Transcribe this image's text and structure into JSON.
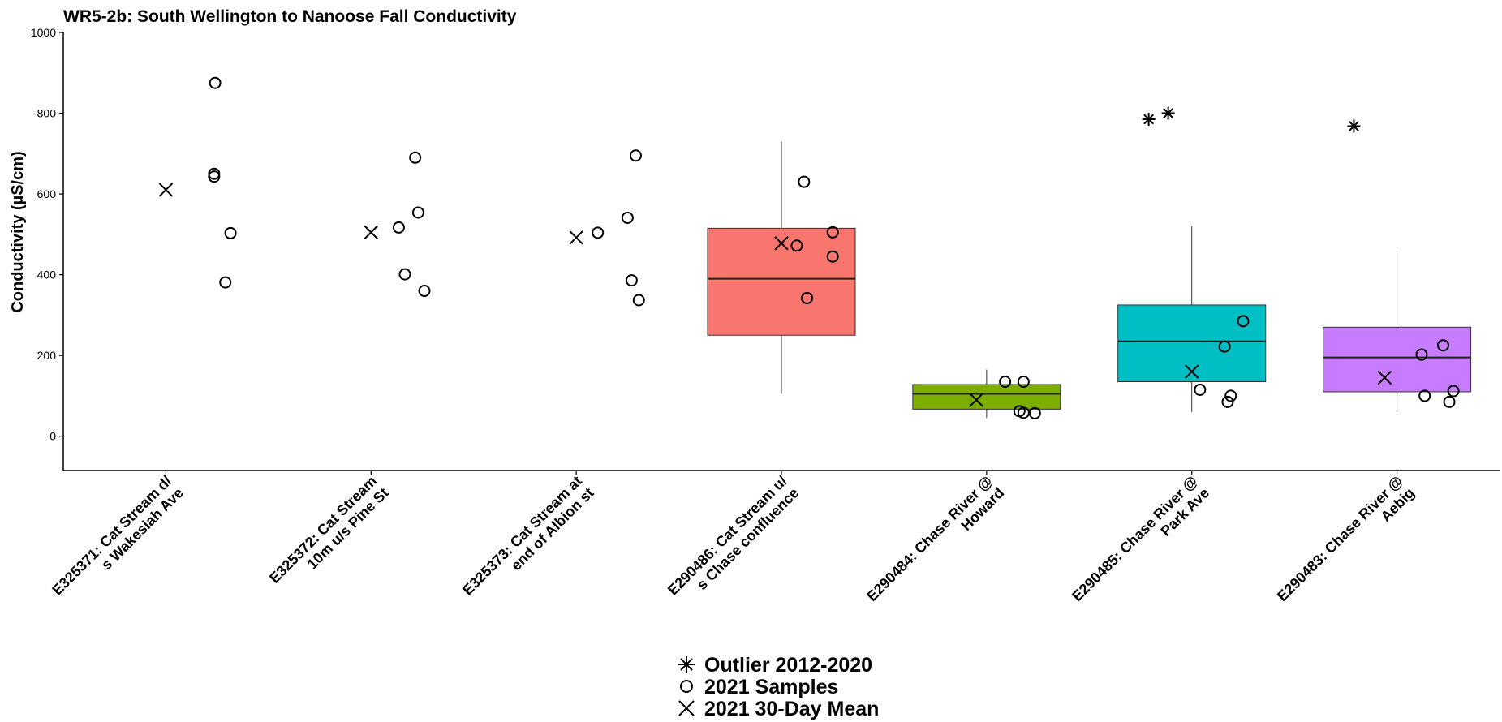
{
  "chart_data": {
    "type": "box",
    "title": "WR5-2b: South Wellington to Nanoose Fall Conductivity",
    "ylabel": "Conductivity (µS/cm)",
    "xlabel": "",
    "ylim": [
      -85,
      1000
    ],
    "yticks": [
      0,
      200,
      400,
      600,
      800,
      1000
    ],
    "grid": false,
    "legend_position": "bottom",
    "legend": [
      {
        "key": "outlier",
        "symbol": "asterisk",
        "label": "Outlier 2012-2020"
      },
      {
        "key": "samples",
        "symbol": "circle",
        "label": "2021 Samples"
      },
      {
        "key": "mean",
        "symbol": "cross",
        "label": "2021 30-Day Mean"
      }
    ],
    "categories": [
      {
        "label_lines": [
          "E325371: Cat Stream d/",
          "s Wakesiah Ave"
        ],
        "box": null,
        "outliers": [],
        "samples": [
          {
            "o": 0.48,
            "y": 875
          },
          {
            "o": 0.47,
            "y": 650
          },
          {
            "o": 0.47,
            "y": 643
          },
          {
            "o": 0.63,
            "y": 503
          },
          {
            "o": 0.58,
            "y": 381
          }
        ],
        "mean": {
          "o": 0.0,
          "y": 610
        }
      },
      {
        "label_lines": [
          "E325372: Cat Stream",
          "10m u/s Pine St"
        ],
        "box": null,
        "outliers": [],
        "samples": [
          {
            "o": 0.43,
            "y": 690
          },
          {
            "o": 0.46,
            "y": 554
          },
          {
            "o": 0.27,
            "y": 517
          },
          {
            "o": 0.33,
            "y": 401
          },
          {
            "o": 0.52,
            "y": 360
          }
        ],
        "mean": {
          "o": 0.0,
          "y": 505
        }
      },
      {
        "label_lines": [
          "E325373: Cat Stream at",
          "end of Albion st"
        ],
        "box": null,
        "outliers": [],
        "samples": [
          {
            "o": 0.58,
            "y": 695
          },
          {
            "o": 0.5,
            "y": 541
          },
          {
            "o": 0.21,
            "y": 504
          },
          {
            "o": 0.54,
            "y": 386
          },
          {
            "o": 0.61,
            "y": 337
          }
        ],
        "mean": {
          "o": 0.0,
          "y": 492
        }
      },
      {
        "label_lines": [
          "E290486: Cat Stream u/",
          "s Chase confluence"
        ],
        "box": {
          "whisker_low": 105,
          "q1": 250,
          "median": 390,
          "q3": 515,
          "whisker_high": 730
        },
        "color": "#F8766D",
        "outliers": [],
        "samples": [
          {
            "o": 0.22,
            "y": 630
          },
          {
            "o": 0.5,
            "y": 505
          },
          {
            "o": 0.15,
            "y": 472
          },
          {
            "o": 0.5,
            "y": 445
          },
          {
            "o": 0.25,
            "y": 342
          }
        ],
        "mean": {
          "o": 0.0,
          "y": 478
        }
      },
      {
        "label_lines": [
          "E290484: Chase River @",
          "Howard"
        ],
        "box": {
          "whisker_low": 45,
          "q1": 67,
          "median": 105,
          "q3": 128,
          "whisker_high": 165
        },
        "color": "#7CAE00",
        "outliers": [],
        "samples": [
          {
            "o": 0.18,
            "y": 135
          },
          {
            "o": 0.36,
            "y": 135
          },
          {
            "o": 0.32,
            "y": 62
          },
          {
            "o": 0.36,
            "y": 58
          },
          {
            "o": 0.47,
            "y": 57
          }
        ],
        "mean": {
          "o": -0.1,
          "y": 90
        }
      },
      {
        "label_lines": [
          "E290485: Chase River @",
          "Park Ave"
        ],
        "box": {
          "whisker_low": 60,
          "q1": 135,
          "median": 235,
          "q3": 325,
          "whisker_high": 520
        },
        "color": "#00BFC4",
        "outliers": [
          {
            "o": -0.42,
            "y": 785
          },
          {
            "o": -0.23,
            "y": 800
          }
        ],
        "samples": [
          {
            "o": 0.5,
            "y": 285
          },
          {
            "o": 0.32,
            "y": 222
          },
          {
            "o": 0.08,
            "y": 115
          },
          {
            "o": 0.38,
            "y": 100
          },
          {
            "o": 0.35,
            "y": 85
          }
        ],
        "mean": {
          "o": 0.0,
          "y": 160
        }
      },
      {
        "label_lines": [
          "E290483: Chase River @",
          "Aebig"
        ],
        "box": {
          "whisker_low": 60,
          "q1": 110,
          "median": 195,
          "q3": 270,
          "whisker_high": 460
        },
        "color": "#C77CFF",
        "outliers": [
          {
            "o": -0.42,
            "y": 768
          }
        ],
        "samples": [
          {
            "o": 0.45,
            "y": 225
          },
          {
            "o": 0.24,
            "y": 202
          },
          {
            "o": 0.55,
            "y": 112
          },
          {
            "o": 0.27,
            "y": 100
          },
          {
            "o": 0.51,
            "y": 85
          }
        ],
        "mean": {
          "o": -0.12,
          "y": 145
        }
      }
    ]
  }
}
